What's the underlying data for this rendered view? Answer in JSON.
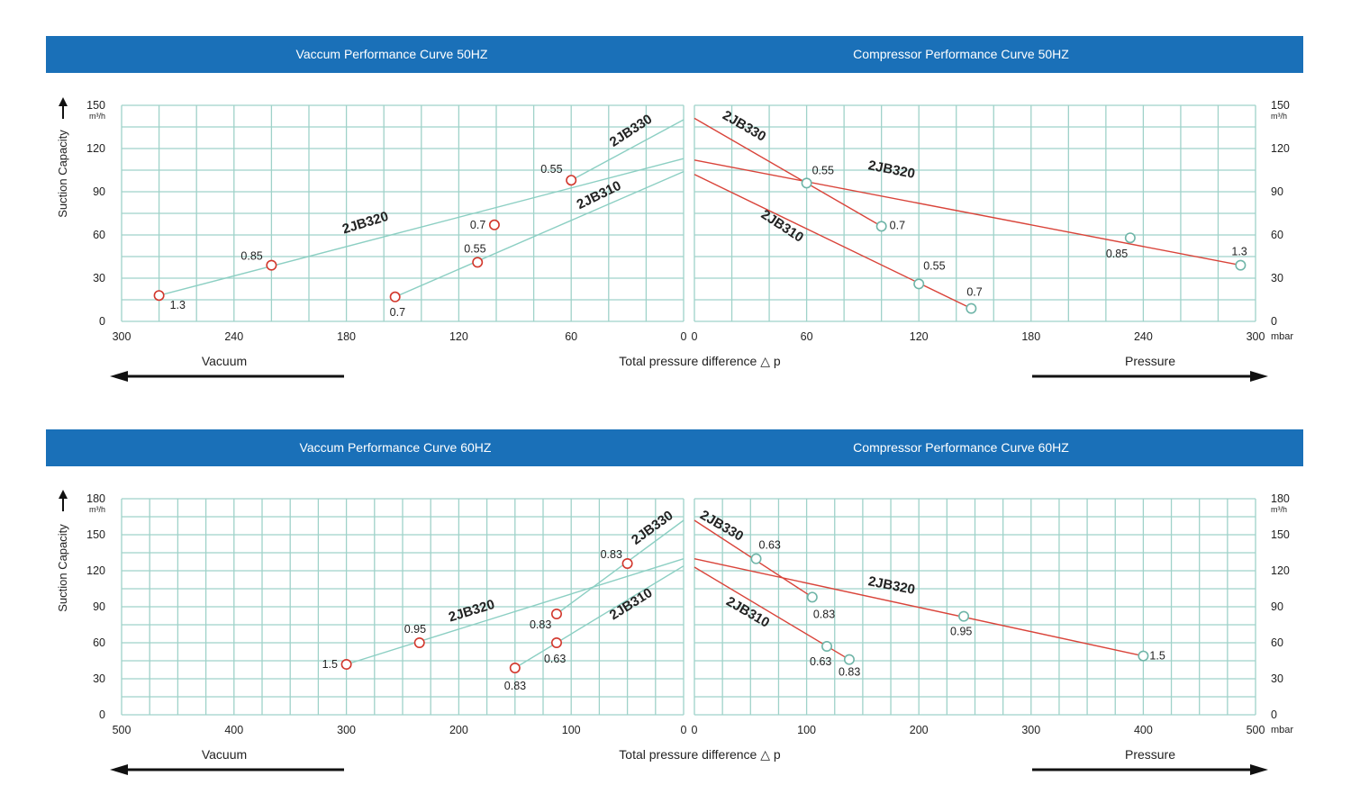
{
  "colors": {
    "header": "#1a70b8",
    "grid": "#9fd2c9",
    "vacuum_line": "#8ccfc3",
    "vacuum_marker": "#d2372c",
    "pressure_line": "#d9443a",
    "pressure_marker": "#6fb5a8"
  },
  "headers": {
    "vac50": "Vaccum Performance Curve 50HZ",
    "comp50": "Compressor Performance Curve 50HZ",
    "vac60": "Vaccum Performance Curve 60HZ",
    "comp60": "Compressor Performance Curve 60HZ"
  },
  "labels": {
    "suction": "Suction Capacity",
    "flow_unit": "m³/h",
    "pressure_unit": "mbar",
    "vacuum": "Vacuum",
    "pressure": "Pressure",
    "total": "Total pressure difference △ p",
    "arrow_up_icon": "arrow-up-icon",
    "arrow_left_icon": "arrow-left-icon",
    "arrow_right_icon": "arrow-right-icon"
  },
  "chart_data": [
    {
      "id": "vac50",
      "type": "line",
      "title": "Vaccum Performance Curve 50HZ",
      "xlabel": "Vacuum",
      "ylabel": "Suction Capacity",
      "xlim": [
        300,
        0
      ],
      "ylim": [
        0,
        150
      ],
      "xticks": [
        300,
        240,
        180,
        120,
        60,
        0
      ],
      "yticks": [
        0,
        30,
        60,
        90,
        120,
        150
      ],
      "series": [
        {
          "name": "2JB330",
          "line": [
            [
              60,
              98
            ],
            [
              0,
              140
            ]
          ],
          "markers": [
            {
              "x": 101,
              "y": 67,
              "label": "0.7"
            },
            {
              "x": 60,
              "y": 98,
              "label": "0.55"
            }
          ]
        },
        {
          "name": "2JB320",
          "line": [
            [
              280,
              18
            ],
            [
              0,
              113
            ]
          ],
          "markers": [
            {
              "x": 280,
              "y": 18,
              "label": "1.3"
            },
            {
              "x": 220,
              "y": 39,
              "label": "0.85"
            }
          ]
        },
        {
          "name": "2JB310",
          "line": [
            [
              154,
              17
            ],
            [
              0,
              104
            ]
          ],
          "markers": [
            {
              "x": 154,
              "y": 17,
              "label": "0.7"
            },
            {
              "x": 110,
              "y": 41,
              "label": "0.55"
            }
          ]
        }
      ]
    },
    {
      "id": "comp50",
      "type": "line",
      "title": "Compressor Performance Curve 50HZ",
      "xlabel": "Pressure",
      "ylabel": "Suction Capacity",
      "xlim": [
        0,
        300
      ],
      "ylim": [
        0,
        150
      ],
      "xticks": [
        0,
        60,
        120,
        180,
        240,
        300
      ],
      "yticks": [
        0,
        30,
        60,
        90,
        120,
        150
      ],
      "series": [
        {
          "name": "2JB330",
          "line": [
            [
              0,
              141
            ],
            [
              100,
              66
            ]
          ],
          "markers": [
            {
              "x": 60,
              "y": 96,
              "label": "0.55"
            },
            {
              "x": 100,
              "y": 66,
              "label": "0.7"
            }
          ]
        },
        {
          "name": "2JB320",
          "line": [
            [
              0,
              112
            ],
            [
              292,
              39
            ]
          ],
          "markers": [
            {
              "x": 233,
              "y": 58,
              "label": "0.85"
            },
            {
              "x": 292,
              "y": 39,
              "label": "1.3"
            }
          ]
        },
        {
          "name": "2JB310",
          "line": [
            [
              0,
              102
            ],
            [
              148,
              9
            ]
          ],
          "markers": [
            {
              "x": 120,
              "y": 26,
              "label": "0.55"
            },
            {
              "x": 148,
              "y": 9,
              "label": "0.7"
            }
          ]
        }
      ]
    },
    {
      "id": "vac60",
      "type": "line",
      "title": "Vaccum Performance Curve 60HZ",
      "xlabel": "Vacuum",
      "ylabel": "Suction Capacity",
      "xlim": [
        500,
        0
      ],
      "ylim": [
        0,
        180
      ],
      "xticks": [
        500,
        400,
        300,
        200,
        100,
        0
      ],
      "yticks": [
        0,
        30,
        60,
        90,
        120,
        150,
        180
      ],
      "series": [
        {
          "name": "2JB330",
          "line": [
            [
              113,
              84
            ],
            [
              0,
              162
            ]
          ],
          "markers": [
            {
              "x": 113,
              "y": 84,
              "label": "0.83"
            },
            {
              "x": 50,
              "y": 126,
              "label": "0.83"
            }
          ]
        },
        {
          "name": "2JB320",
          "line": [
            [
              300,
              42
            ],
            [
              0,
              130
            ]
          ],
          "markers": [
            {
              "x": 300,
              "y": 42,
              "label": "1.5"
            },
            {
              "x": 235,
              "y": 60,
              "label": "0.95"
            }
          ]
        },
        {
          "name": "2JB310",
          "line": [
            [
              150,
              39
            ],
            [
              0,
              124
            ]
          ],
          "markers": [
            {
              "x": 150,
              "y": 39,
              "label": "0.83"
            },
            {
              "x": 113,
              "y": 60,
              "label": "0.63"
            }
          ]
        }
      ]
    },
    {
      "id": "comp60",
      "type": "line",
      "title": "Compressor Performance Curve 60HZ",
      "xlabel": "Pressure",
      "ylabel": "Suction Capacity",
      "xlim": [
        0,
        500
      ],
      "ylim": [
        0,
        180
      ],
      "xticks": [
        0,
        100,
        200,
        300,
        400,
        500
      ],
      "yticks": [
        0,
        30,
        60,
        90,
        120,
        150,
        180
      ],
      "series": [
        {
          "name": "2JB330",
          "line": [
            [
              0,
              162
            ],
            [
              105,
              98
            ]
          ],
          "markers": [
            {
              "x": 55,
              "y": 130,
              "label": "0.63"
            },
            {
              "x": 105,
              "y": 98,
              "label": "0.83"
            }
          ]
        },
        {
          "name": "2JB320",
          "line": [
            [
              0,
              130
            ],
            [
              400,
              49
            ]
          ],
          "markers": [
            {
              "x": 240,
              "y": 82,
              "label": "0.95"
            },
            {
              "x": 400,
              "y": 49,
              "label": "1.5"
            }
          ]
        },
        {
          "name": "2JB310",
          "line": [
            [
              0,
              123
            ],
            [
              138,
              46
            ]
          ],
          "markers": [
            {
              "x": 118,
              "y": 57,
              "label": "0.63"
            },
            {
              "x": 138,
              "y": 46,
              "label": "0.83"
            }
          ]
        }
      ]
    }
  ]
}
